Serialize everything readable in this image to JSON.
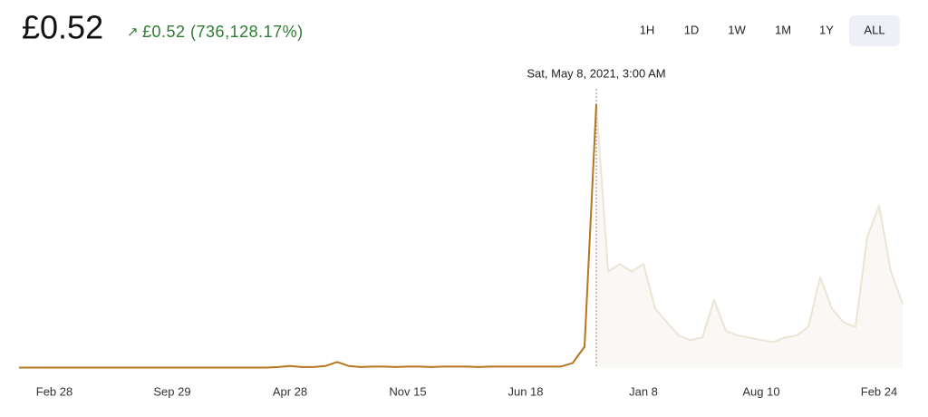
{
  "header": {
    "price": "£0.52",
    "arrow": "↗",
    "change": "£0.52 (736,128.17%)"
  },
  "range_buttons": [
    "1H",
    "1D",
    "1W",
    "1M",
    "1Y",
    "ALL"
  ],
  "selected_range": "ALL",
  "chart_data": {
    "type": "line",
    "hover_label": "Sat, May 8, 2021, 3:00 AM",
    "color": "#b5761f",
    "faded_color": "#ece4d6",
    "ylim": [
      0,
      0.55
    ],
    "categories": [
      null,
      null,
      null,
      "Feb 28",
      null,
      null,
      null,
      null,
      null,
      null,
      null,
      null,
      null,
      "Sep 29",
      null,
      null,
      null,
      null,
      null,
      null,
      null,
      null,
      null,
      "Apr 28",
      null,
      null,
      null,
      null,
      null,
      null,
      null,
      null,
      null,
      "Nov 15",
      null,
      null,
      null,
      null,
      null,
      null,
      null,
      null,
      null,
      "Jun 18",
      null,
      null,
      null,
      null,
      null,
      null,
      null,
      null,
      null,
      "Jan 8",
      null,
      null,
      null,
      null,
      null,
      null,
      null,
      null,
      null,
      "Aug 10",
      null,
      null,
      null,
      null,
      null,
      null,
      null,
      null,
      null,
      "Feb 24",
      null,
      null
    ],
    "values": [
      0.001,
      0.001,
      0.001,
      0.001,
      0.001,
      0.001,
      0.001,
      0.001,
      0.001,
      0.001,
      0.001,
      0.001,
      0.001,
      0.001,
      0.001,
      0.001,
      0.001,
      0.001,
      0.001,
      0.001,
      0.001,
      0.001,
      0.002,
      0.004,
      0.002,
      0.002,
      0.004,
      0.012,
      0.004,
      0.002,
      0.003,
      0.003,
      0.002,
      0.003,
      0.003,
      0.002,
      0.003,
      0.003,
      0.003,
      0.002,
      0.003,
      0.003,
      0.003,
      0.003,
      0.003,
      0.003,
      0.003,
      0.01,
      0.042,
      0.52,
      0.19,
      0.205,
      0.19,
      0.205,
      0.117,
      0.09,
      0.064,
      0.055,
      0.06,
      0.134,
      0.073,
      0.064,
      0.06,
      0.055,
      0.051,
      0.06,
      0.064,
      0.081,
      0.179,
      0.117,
      0.09,
      0.081,
      0.258,
      0.32,
      0.19,
      0.126
    ]
  }
}
